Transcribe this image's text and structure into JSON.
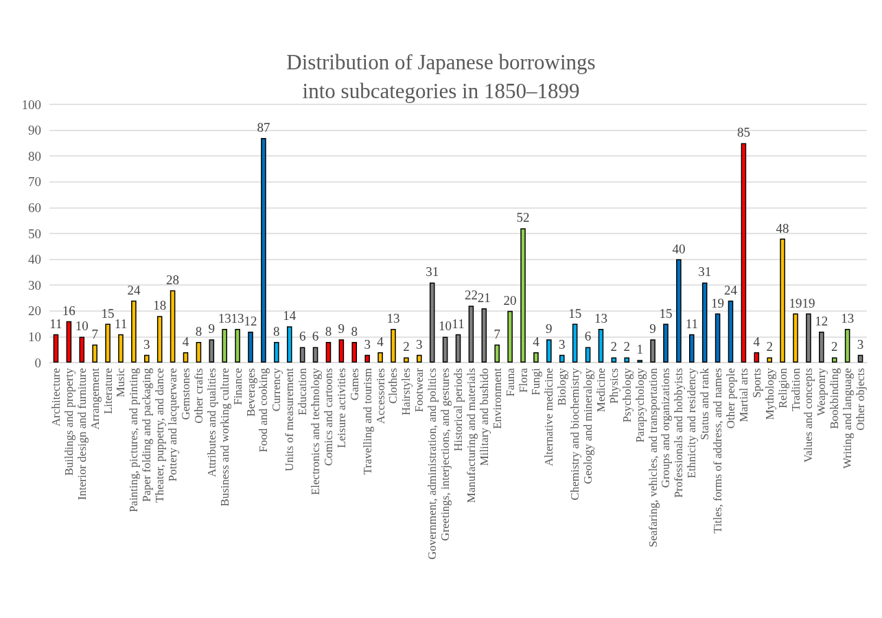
{
  "chart_data": {
    "type": "bar",
    "title": "Distribution of Japanese borrowings\ninto subcategories in 1850–1899",
    "categories": [
      "Architecture",
      "Buildings and property",
      "Interior design and furniture",
      "Arrangement",
      "Literature",
      "Music",
      "Painting, pictures, and printing",
      "Paper folding and packaging",
      "Theater, puppetry, and dance",
      "Pottery and lacquerware",
      "Gemstones",
      "Other crafts",
      "Attributes and qualities",
      "Business and working culture",
      "Finance",
      "Beverages",
      "Food and cooking",
      "Currency",
      "Units of measurement",
      "Education",
      "Electronics and technology",
      "Comics and cartoons",
      "Leisure activities",
      "Games",
      "Travelling and tourism",
      "Accessories",
      "Clothes",
      "Hairstyles",
      "Footwear",
      "Government, administration, and politics",
      "Greetings, interjections, and gestures",
      "Historical periods",
      "Manufacturing and materials",
      "Military and bushido",
      "Environment",
      "Fauna",
      "Flora",
      "Fungi",
      "Alternative medicine",
      "Biology",
      "Chemistry and biochemistry",
      "Geology and mineralogy",
      "Medicine",
      "Physics",
      "Psychology",
      "Parapsychology",
      "Seafaring, vehicles, and transportation",
      "Groups and organizations",
      "Professionals and hobbyists",
      "Ethnicity and residency",
      "Status and rank",
      "Titles, forms of address, and names",
      "Other people",
      "Martial arts",
      "Sports",
      "Mythology",
      "Religion",
      "Tradition",
      "Values and concepts",
      "Weaponry",
      "Bookbinding",
      "Writing and language",
      "Other objects"
    ],
    "values": [
      11,
      16,
      10,
      7,
      15,
      11,
      24,
      3,
      18,
      28,
      4,
      8,
      9,
      13,
      13,
      12,
      87,
      8,
      14,
      6,
      6,
      8,
      9,
      8,
      3,
      4,
      13,
      2,
      3,
      31,
      10,
      11,
      22,
      21,
      7,
      20,
      52,
      4,
      9,
      3,
      15,
      6,
      13,
      2,
      2,
      1,
      9,
      15,
      40,
      11,
      31,
      19,
      24,
      85,
      4,
      2,
      48,
      19,
      19,
      12,
      2,
      13,
      3
    ],
    "colors": [
      "#ff0000",
      "#ff0000",
      "#ff0000",
      "#ffc000",
      "#ffc000",
      "#ffc000",
      "#ffc000",
      "#ffc000",
      "#ffc000",
      "#ffc000",
      "#ffc000",
      "#ffc000",
      "#808080",
      "#92d050",
      "#92d050",
      "#0070c0",
      "#0070c0",
      "#00b0f0",
      "#00b0f0",
      "#808080",
      "#808080",
      "#ff0000",
      "#ff0000",
      "#ff0000",
      "#ff0000",
      "#ffc000",
      "#ffc000",
      "#ffc000",
      "#ffc000",
      "#808080",
      "#808080",
      "#808080",
      "#808080",
      "#808080",
      "#92d050",
      "#92d050",
      "#92d050",
      "#92d050",
      "#00b0f0",
      "#00b0f0",
      "#00b0f0",
      "#00b0f0",
      "#00b0f0",
      "#00b0f0",
      "#00b0f0",
      "#00b0f0",
      "#808080",
      "#0070c0",
      "#0070c0",
      "#0070c0",
      "#0070c0",
      "#0070c0",
      "#0070c0",
      "#ff0000",
      "#ff0000",
      "#ffc000",
      "#ffc000",
      "#ffc000",
      "#808080",
      "#808080",
      "#92d050",
      "#92d050",
      "#808080"
    ],
    "ylim": [
      0,
      100
    ],
    "yticks": [
      0,
      10,
      20,
      30,
      40,
      50,
      60,
      70,
      80,
      90,
      100
    ],
    "grid": "y",
    "data_labels": true
  }
}
